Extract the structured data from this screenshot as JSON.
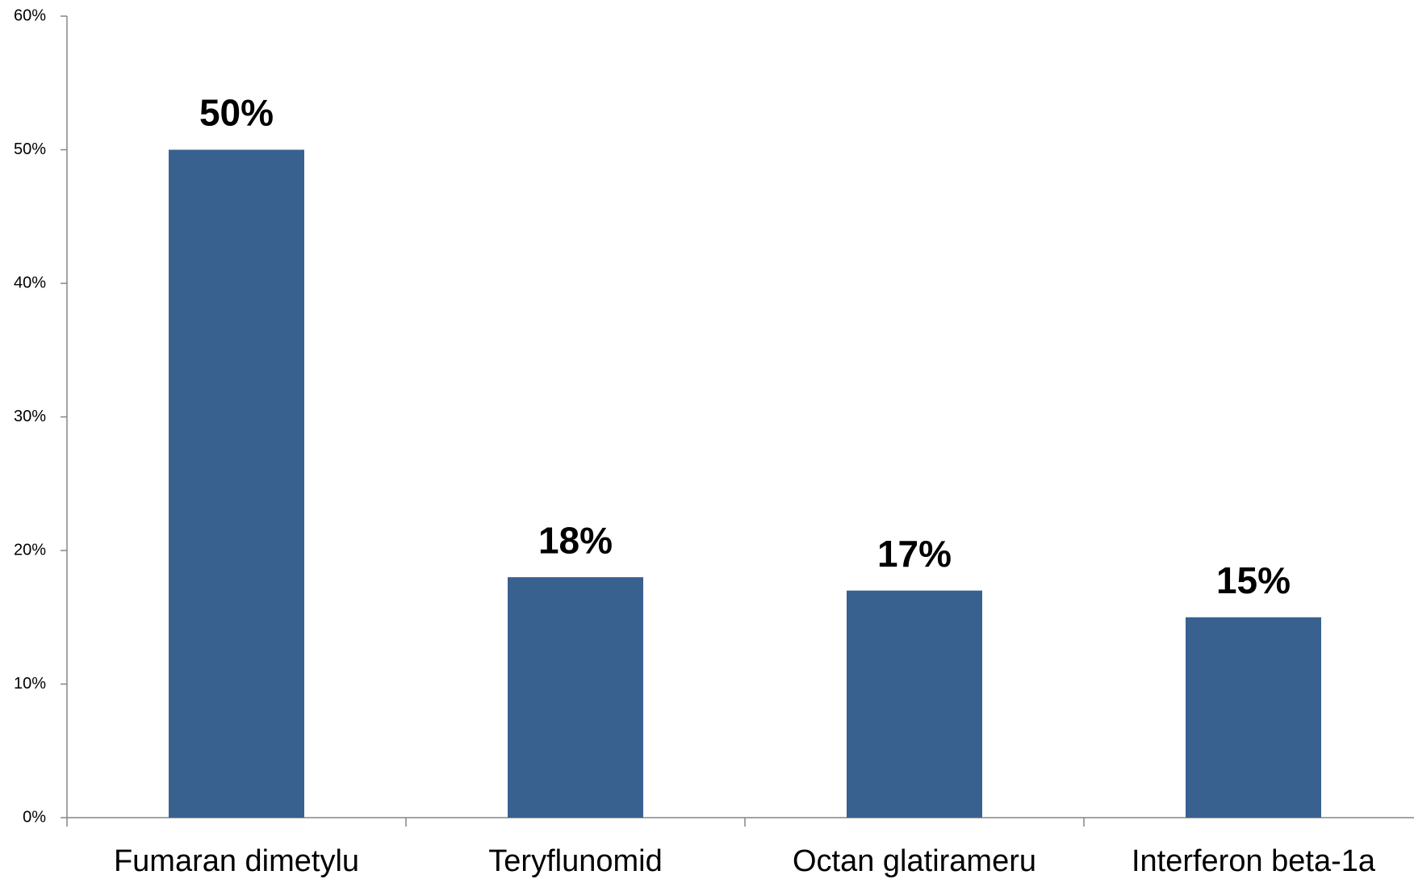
{
  "chart_data": {
    "type": "bar",
    "categories": [
      "Fumaran dimetylu",
      "Teryflunomid",
      "Octan glatirameru",
      "Interferon beta-1a"
    ],
    "values": [
      50,
      18,
      17,
      15
    ],
    "value_labels": [
      "50%",
      "18%",
      "17%",
      "15%"
    ],
    "color": "#386190",
    "ylim": [
      0,
      60
    ],
    "yticks": [
      {
        "value": 0,
        "label": "0%"
      },
      {
        "value": 10,
        "label": "10%"
      },
      {
        "value": 20,
        "label": "20%"
      },
      {
        "value": 30,
        "label": "30%"
      },
      {
        "value": 40,
        "label": "40%"
      },
      {
        "value": 50,
        "label": "50%"
      },
      {
        "value": 60,
        "label": "60%"
      }
    ],
    "grid": false
  }
}
